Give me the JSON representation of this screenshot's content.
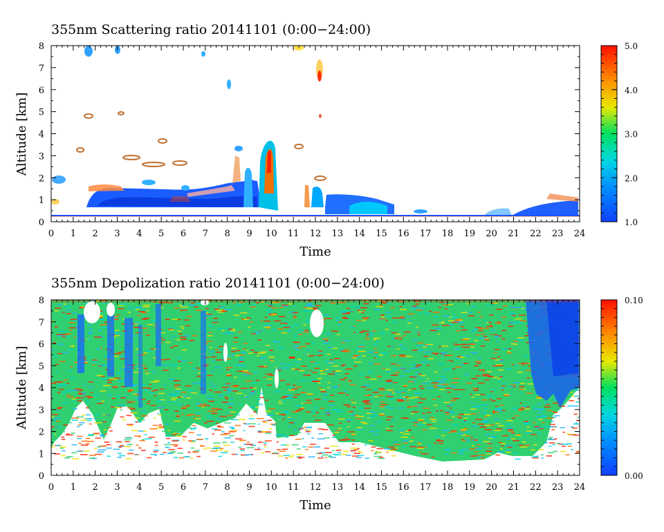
{
  "chart_data": [
    {
      "type": "heatmap",
      "title": "355nm Scattering ratio  20141101 (0:00−24:00)",
      "xlabel": "Time",
      "ylabel": "Altitude [km]",
      "xlim": [
        0,
        24
      ],
      "ylim": [
        0,
        8
      ],
      "x_ticks": [
        "0",
        "1",
        "2",
        "3",
        "4",
        "5",
        "6",
        "7",
        "8",
        "9",
        "10",
        "11",
        "12",
        "13",
        "14",
        "15",
        "16",
        "17",
        "18",
        "19",
        "20",
        "21",
        "22",
        "23",
        "24"
      ],
      "y_ticks": [
        "0",
        "1",
        "2",
        "3",
        "4",
        "5",
        "6",
        "7",
        "8"
      ],
      "colorbar": {
        "range": [
          1.0,
          5.0
        ],
        "tick_labels": [
          "1.0",
          "2.0",
          "3.0",
          "4.0",
          "5.0"
        ],
        "tick_values": [
          1.0,
          2.0,
          3.0,
          4.0,
          5.0
        ]
      },
      "grid": false
    },
    {
      "type": "heatmap",
      "title": "355nm Depolization ratio  20141101 (0:00−24:00)",
      "xlabel": "Time",
      "ylabel": "Altitude [km]",
      "xlim": [
        0,
        24
      ],
      "ylim": [
        0,
        8
      ],
      "x_ticks": [
        "0",
        "1",
        "2",
        "3",
        "4",
        "5",
        "6",
        "7",
        "8",
        "9",
        "10",
        "11",
        "12",
        "13",
        "14",
        "15",
        "16",
        "17",
        "18",
        "19",
        "20",
        "21",
        "22",
        "23",
        "24"
      ],
      "y_ticks": [
        "0",
        "1",
        "2",
        "3",
        "4",
        "5",
        "6",
        "7",
        "8"
      ],
      "colorbar": {
        "range": [
          0.0,
          0.1
        ],
        "tick_labels": [
          "0.00",
          "0.10"
        ],
        "tick_values": [
          0.0,
          0.1
        ]
      },
      "grid": false
    }
  ],
  "colors": {
    "colormap": [
      "#1040ff",
      "#00c8ff",
      "#00e060",
      "#f0e000",
      "#ff7000",
      "#ff2000"
    ],
    "axes": "#000000",
    "background": "#ffffff"
  }
}
